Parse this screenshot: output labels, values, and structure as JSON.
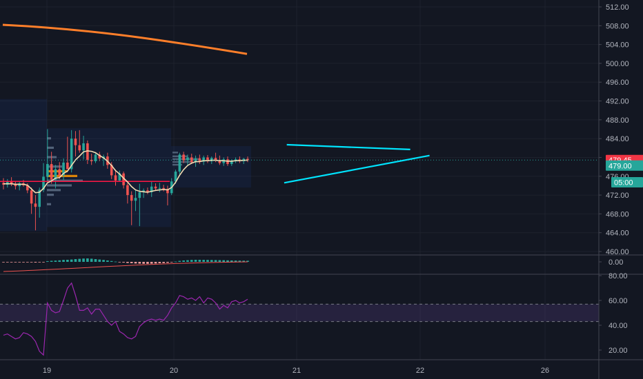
{
  "chart_data": [
    {
      "type": "candlestick",
      "pane": "price",
      "y_ticks": [
        "512.00",
        "508.00",
        "504.00",
        "500.00",
        "496.00",
        "492.00",
        "488.00",
        "484.00",
        "480.00",
        "476.00",
        "472.00",
        "468.00",
        "464.00",
        "460.00"
      ],
      "ylim": [
        459.4,
        513.6
      ],
      "price_labels": [
        {
          "value": 479.45,
          "text": "479.45",
          "color": "#f23645"
        },
        {
          "value": 479.0,
          "text": "479.00",
          "color": "#26a69a"
        },
        {
          "value": 475.9,
          "text": "05:00",
          "color": "#26a69a"
        }
      ],
      "current_price": 479.45,
      "horizontal_level": 474.9,
      "candles": [
        {
          "o": 474.6,
          "h": 475.6,
          "l": 473.2,
          "c": 474.2
        },
        {
          "o": 474.2,
          "h": 475.4,
          "l": 473.6,
          "c": 474.8
        },
        {
          "o": 474.8,
          "h": 475.8,
          "l": 473.9,
          "c": 474.3
        },
        {
          "o": 474.3,
          "h": 475.0,
          "l": 473.2,
          "c": 473.9
        },
        {
          "o": 473.9,
          "h": 474.9,
          "l": 473.0,
          "c": 474.5
        },
        {
          "o": 474.5,
          "h": 475.2,
          "l": 473.8,
          "c": 474.1
        },
        {
          "o": 474.1,
          "h": 474.5,
          "l": 472.4,
          "c": 473.0
        },
        {
          "o": 473.0,
          "h": 473.6,
          "l": 468.0,
          "c": 470.2
        },
        {
          "o": 470.2,
          "h": 472.0,
          "l": 464.5,
          "c": 469.5
        },
        {
          "o": 469.5,
          "h": 473.6,
          "l": 467.2,
          "c": 473.1
        },
        {
          "o": 473.1,
          "h": 478.8,
          "l": 472.6,
          "c": 475.9
        },
        {
          "o": 475.9,
          "h": 486.0,
          "l": 474.9,
          "c": 478.6
        },
        {
          "o": 478.6,
          "h": 481.2,
          "l": 474.4,
          "c": 475.3
        },
        {
          "o": 475.3,
          "h": 478.4,
          "l": 473.4,
          "c": 477.5
        },
        {
          "o": 477.5,
          "h": 479.0,
          "l": 475.4,
          "c": 476.2
        },
        {
          "o": 476.2,
          "h": 479.8,
          "l": 475.2,
          "c": 478.9
        },
        {
          "o": 478.9,
          "h": 484.4,
          "l": 478.0,
          "c": 477.5
        },
        {
          "o": 477.5,
          "h": 485.8,
          "l": 476.8,
          "c": 484.0
        },
        {
          "o": 484.0,
          "h": 485.6,
          "l": 480.2,
          "c": 482.6
        },
        {
          "o": 482.6,
          "h": 485.8,
          "l": 481.0,
          "c": 481.5
        },
        {
          "o": 481.5,
          "h": 484.6,
          "l": 479.6,
          "c": 483.0
        },
        {
          "o": 483.0,
          "h": 483.6,
          "l": 478.6,
          "c": 479.5
        },
        {
          "o": 479.5,
          "h": 480.8,
          "l": 478.4,
          "c": 479.2
        },
        {
          "o": 479.2,
          "h": 481.0,
          "l": 478.8,
          "c": 480.6
        },
        {
          "o": 480.6,
          "h": 481.2,
          "l": 479.2,
          "c": 479.8
        },
        {
          "o": 479.8,
          "h": 480.6,
          "l": 478.2,
          "c": 480.2
        },
        {
          "o": 480.2,
          "h": 481.0,
          "l": 477.6,
          "c": 478.4
        },
        {
          "o": 478.4,
          "h": 479.0,
          "l": 475.4,
          "c": 476.2
        },
        {
          "o": 476.2,
          "h": 477.4,
          "l": 474.0,
          "c": 475.1
        },
        {
          "o": 475.1,
          "h": 477.2,
          "l": 474.8,
          "c": 476.6
        },
        {
          "o": 476.6,
          "h": 477.0,
          "l": 473.4,
          "c": 474.1
        },
        {
          "o": 474.1,
          "h": 474.6,
          "l": 470.2,
          "c": 472.0
        },
        {
          "o": 472.0,
          "h": 472.8,
          "l": 465.6,
          "c": 470.8
        },
        {
          "o": 470.8,
          "h": 473.0,
          "l": 468.6,
          "c": 471.4
        },
        {
          "o": 471.4,
          "h": 474.4,
          "l": 465.4,
          "c": 472.6
        },
        {
          "o": 472.6,
          "h": 473.4,
          "l": 471.4,
          "c": 473.0
        },
        {
          "o": 473.0,
          "h": 473.6,
          "l": 472.2,
          "c": 472.6
        },
        {
          "o": 472.6,
          "h": 474.8,
          "l": 471.6,
          "c": 473.8
        },
        {
          "o": 473.8,
          "h": 474.5,
          "l": 473.0,
          "c": 473.4
        },
        {
          "o": 473.4,
          "h": 474.6,
          "l": 472.6,
          "c": 473.5
        },
        {
          "o": 473.5,
          "h": 474.2,
          "l": 472.8,
          "c": 473.3
        },
        {
          "o": 473.3,
          "h": 474.0,
          "l": 469.8,
          "c": 472.4
        },
        {
          "o": 472.4,
          "h": 475.6,
          "l": 472.0,
          "c": 474.9
        },
        {
          "o": 474.9,
          "h": 477.4,
          "l": 474.4,
          "c": 477.0
        },
        {
          "o": 477.0,
          "h": 481.0,
          "l": 476.4,
          "c": 480.6
        },
        {
          "o": 480.6,
          "h": 481.2,
          "l": 478.8,
          "c": 479.4
        },
        {
          "o": 479.4,
          "h": 480.6,
          "l": 478.4,
          "c": 480.0
        },
        {
          "o": 480.0,
          "h": 480.8,
          "l": 478.6,
          "c": 479.0
        },
        {
          "o": 479.0,
          "h": 480.4,
          "l": 478.0,
          "c": 479.8
        },
        {
          "o": 479.8,
          "h": 480.6,
          "l": 478.6,
          "c": 479.1
        },
        {
          "o": 479.1,
          "h": 480.4,
          "l": 478.4,
          "c": 480.0
        },
        {
          "o": 480.0,
          "h": 480.5,
          "l": 478.8,
          "c": 479.2
        },
        {
          "o": 479.2,
          "h": 480.2,
          "l": 478.6,
          "c": 479.9
        },
        {
          "o": 479.9,
          "h": 481.0,
          "l": 479.0,
          "c": 479.4
        },
        {
          "o": 479.4,
          "h": 480.4,
          "l": 478.4,
          "c": 478.8
        },
        {
          "o": 478.8,
          "h": 480.0,
          "l": 478.2,
          "c": 479.6
        },
        {
          "o": 479.6,
          "h": 480.2,
          "l": 478.2,
          "c": 478.6
        },
        {
          "o": 478.6,
          "h": 479.6,
          "l": 478.2,
          "c": 479.3
        },
        {
          "o": 479.3,
          "h": 480.0,
          "l": 478.8,
          "c": 479.6
        },
        {
          "o": 479.6,
          "h": 480.2,
          "l": 478.8,
          "c": 479.2
        },
        {
          "o": 479.2,
          "h": 479.9,
          "l": 478.6,
          "c": 479.7
        },
        {
          "o": 479.7,
          "h": 480.2,
          "l": 479.0,
          "c": 479.45
        }
      ],
      "ema_short": [
        474.4,
        474.4,
        474.4,
        474.3,
        474.3,
        474.3,
        474.1,
        473.3,
        472.5,
        472.6,
        473.4,
        474.6,
        475.0,
        475.6,
        475.7,
        476.6,
        477.1,
        478.3,
        479.5,
        480.3,
        481.2,
        481.4,
        481.3,
        481.0,
        480.4,
        479.9,
        479.2,
        478.3,
        477.2,
        476.5,
        475.6,
        474.8,
        473.8,
        473.1,
        472.8,
        472.7,
        472.6,
        472.8,
        473.0,
        473.1,
        473.2,
        473.1,
        473.6,
        474.7,
        476.2,
        477.4,
        478.3,
        478.8,
        479.1,
        479.1,
        479.3,
        479.3,
        479.4,
        479.4,
        479.3,
        479.3,
        479.2,
        479.2,
        479.3,
        479.3,
        479.4,
        479.4
      ],
      "ema_long": [
        508.2,
        502.0
      ],
      "triangle_upper": [
        [
          0.446,
          482.7
        ],
        [
          0.638,
          481.7
        ]
      ],
      "triangle_lower": [
        [
          0.442,
          474.6
        ],
        [
          0.668,
          480.4
        ]
      ]
    },
    {
      "type": "histogram",
      "pane": "momentum",
      "y_ticks": [
        "0.00"
      ],
      "values": [
        -0.05,
        -0.04,
        -0.03,
        -0.02,
        -0.02,
        -0.01,
        -0.01,
        -0.06,
        -0.1,
        -0.08,
        -0.02,
        0.1,
        0.15,
        0.18,
        0.22,
        0.28,
        0.3,
        0.34,
        0.4,
        0.44,
        0.48,
        0.5,
        0.46,
        0.4,
        0.34,
        0.28,
        0.2,
        0.12,
        0.04,
        -0.04,
        -0.1,
        -0.16,
        -0.2,
        -0.24,
        -0.26,
        -0.28,
        -0.28,
        -0.26,
        -0.24,
        -0.2,
        -0.18,
        -0.14,
        -0.06,
        0.04,
        0.14,
        0.2,
        0.24,
        0.28,
        0.3,
        0.3,
        0.29,
        0.28,
        0.27,
        0.26,
        0.25,
        0.24,
        0.22,
        0.2,
        0.19,
        0.18,
        0.17,
        0.16
      ]
    },
    {
      "type": "line",
      "pane": "rsi",
      "y_ticks": [
        "80.00",
        "60.00",
        "40.00",
        "20.00"
      ],
      "ylim": [
        14,
        82
      ],
      "band": [
        43,
        57
      ],
      "values": [
        32,
        33,
        31,
        29,
        30,
        34,
        33,
        31,
        27,
        19,
        16,
        58,
        52,
        50,
        51,
        60,
        70,
        74,
        64,
        52,
        52,
        54,
        49,
        53,
        53,
        48,
        43,
        40,
        43,
        35,
        33,
        30,
        29,
        31,
        39,
        42,
        44,
        45,
        44,
        45,
        44,
        48,
        54,
        58,
        64,
        63,
        61,
        62,
        60,
        63,
        58,
        62,
        61,
        58,
        53,
        56,
        54,
        59,
        60,
        58,
        59,
        61
      ]
    },
    {
      "type": "time-axis",
      "x_ticks": [
        "19",
        "20",
        "21",
        "22",
        "26"
      ]
    }
  ],
  "colors": {
    "up": "#26a69a",
    "down": "#ef5350",
    "ema_short": "#f5deb3",
    "ema_long": "#ff7f2a",
    "triangle": "#00e5ff",
    "level": "#ff1744",
    "rsi": "#9c27b0",
    "histogram_pos": "#26a69a",
    "histogram_neg": "#ef9a9a"
  }
}
